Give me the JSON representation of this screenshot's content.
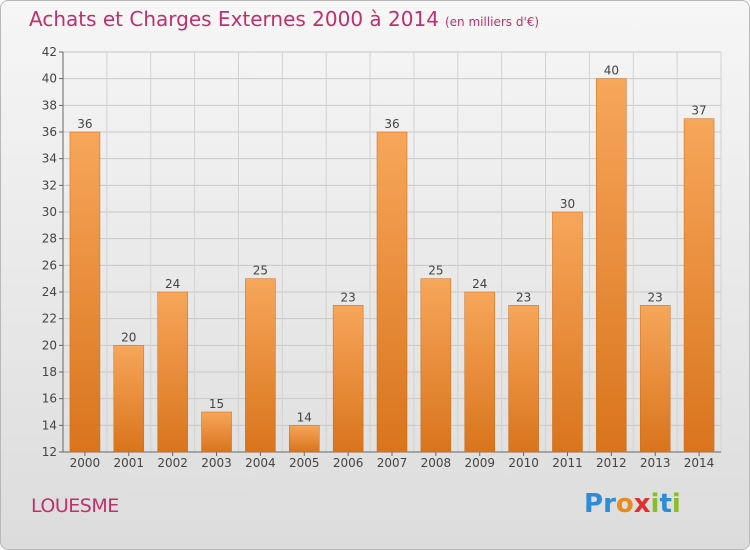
{
  "header": {
    "title": "Achats et Charges Externes 2000 à 2014",
    "subtitle": "(en milliers d'€)"
  },
  "footer": {
    "location": "LOUESME",
    "brand": "Proxiti",
    "brand_letters": [
      {
        "ch": "P",
        "color": "#2e8bd6"
      },
      {
        "ch": "r",
        "color": "#2e8bd6"
      },
      {
        "ch": "o",
        "color": "#e98a1d"
      },
      {
        "ch": "x",
        "color": "#e0302c"
      },
      {
        "ch": "i",
        "color": "#8bbd2a"
      },
      {
        "ch": "t",
        "color": "#2e8bd6"
      },
      {
        "ch": "i",
        "color": "#8bbd2a"
      }
    ]
  },
  "chart_data": {
    "type": "bar",
    "categories": [
      "2000",
      "2001",
      "2002",
      "2003",
      "2004",
      "2005",
      "2006",
      "2007",
      "2008",
      "2009",
      "2010",
      "2011",
      "2012",
      "2013",
      "2014"
    ],
    "values": [
      36,
      20,
      24,
      15,
      25,
      14,
      23,
      36,
      25,
      24,
      23,
      30,
      40,
      23,
      37
    ],
    "data_labels": [
      "36",
      "20",
      "24",
      "15",
      "25",
      "14",
      "23",
      "36",
      "25",
      "24",
      "23",
      "30",
      "40",
      "23",
      "37"
    ],
    "ylim": [
      12,
      42
    ],
    "yticks": [
      12,
      14,
      16,
      18,
      20,
      22,
      24,
      26,
      28,
      30,
      32,
      34,
      36,
      38,
      40,
      42
    ],
    "ytick_labels": [
      "12",
      "14",
      "16",
      "18",
      "20",
      "22",
      "24",
      "26",
      "28",
      "30",
      "32",
      "34",
      "36",
      "38",
      "40",
      "42"
    ],
    "grid": true,
    "bar_color_light": "#f7a65a",
    "bar_color_dark": "#d9741c",
    "text_color": "#444444"
  }
}
